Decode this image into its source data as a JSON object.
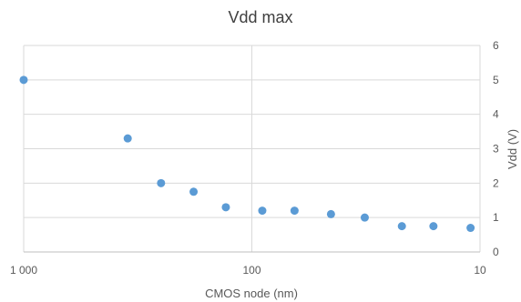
{
  "chart_data": {
    "type": "scatter",
    "title": "Vdd max",
    "xlabel": "CMOS node (nm)",
    "ylabel": "Vdd (V)",
    "x_scale": "log",
    "x_reversed": true,
    "xlim": [
      1000,
      10
    ],
    "ylim": [
      0,
      6
    ],
    "x_ticks": [
      1000,
      100,
      10
    ],
    "x_tick_labels": [
      "1 000",
      "100",
      "10"
    ],
    "y_ticks": [
      0,
      1,
      2,
      3,
      4,
      5,
      6
    ],
    "y_tick_labels": [
      "0",
      "1",
      "2",
      "3",
      "4",
      "5",
      "6"
    ],
    "y_axis_side": "right",
    "grid": true,
    "legend": "none",
    "marker_color": "#5b9bd5",
    "grid_color": "#d9d9d9",
    "series": [
      {
        "x": [
          1000,
          350,
          250,
          180,
          130,
          90,
          65,
          45,
          32,
          22,
          16,
          11
        ],
        "y": [
          5,
          3.3,
          2,
          1.75,
          1.3,
          1.2,
          1.2,
          1.1,
          1.0,
          0.75,
          0.75,
          0.7
        ]
      }
    ]
  }
}
